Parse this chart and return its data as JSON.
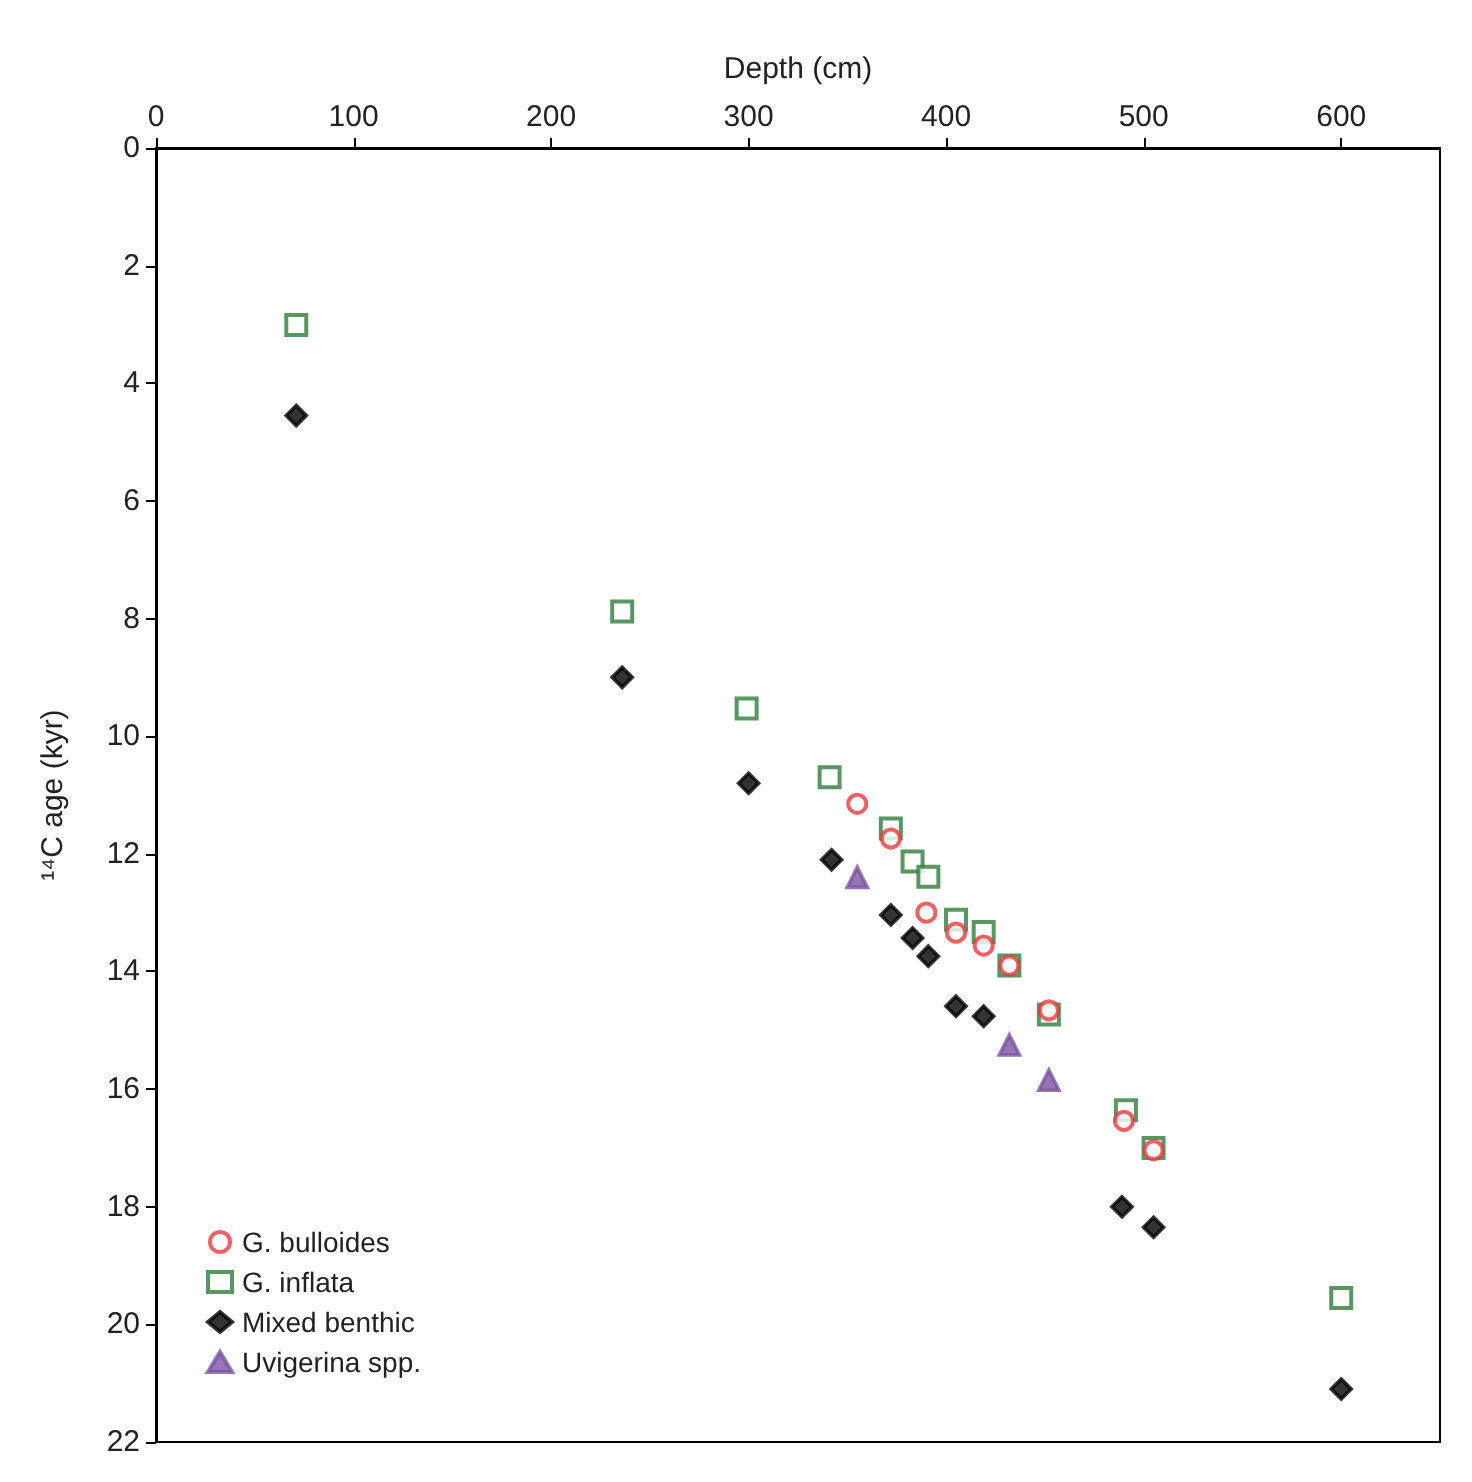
{
  "chart_data": {
    "type": "scatter",
    "xlabel": "Depth (cm)",
    "ylabel": "¹⁴C age (kyr)",
    "xlim": [
      0,
      650
    ],
    "xticks": [
      0,
      100,
      200,
      300,
      400,
      500,
      600
    ],
    "ylim": [
      22,
      0
    ],
    "yticks": [
      0,
      2,
      4,
      6,
      8,
      10,
      12,
      14,
      16,
      18,
      20,
      22
    ],
    "grid": false,
    "legend": "bottom left",
    "series": [
      {
        "name": "G. bulloides",
        "color": "#e8383d",
        "marker": "circle",
        "x": [
          355,
          372,
          390,
          405,
          419,
          432,
          452,
          490,
          505
        ],
        "values": [
          11.15,
          11.74,
          13.0,
          13.34,
          13.56,
          13.9,
          14.66,
          16.54,
          17.04
        ]
      },
      {
        "name": "G. inflata",
        "color": "#2e7d3a",
        "marker": "square",
        "x": [
          71,
          236,
          299,
          341,
          372,
          383,
          391,
          405,
          419,
          432,
          452,
          491,
          505,
          600
        ],
        "values": [
          3.01,
          7.88,
          9.53,
          10.7,
          11.57,
          12.13,
          12.39,
          13.12,
          13.33,
          13.9,
          14.73,
          16.36,
          17.0,
          19.55
        ]
      },
      {
        "name": "Mixed benthic",
        "color": "#000000",
        "marker": "diamond",
        "x": [
          71,
          236,
          300,
          342,
          372,
          383,
          391,
          405,
          419,
          489,
          505,
          600
        ],
        "values": [
          4.55,
          9.0,
          10.8,
          12.1,
          13.04,
          13.43,
          13.74,
          14.59,
          14.76,
          18.0,
          18.35,
          21.1
        ]
      },
      {
        "name": "Uvigerina spp.",
        "color": "#7b52a0",
        "marker": "triangle",
        "x": [
          355,
          432,
          452
        ],
        "values": [
          12.4,
          15.25,
          15.85
        ]
      }
    ]
  }
}
